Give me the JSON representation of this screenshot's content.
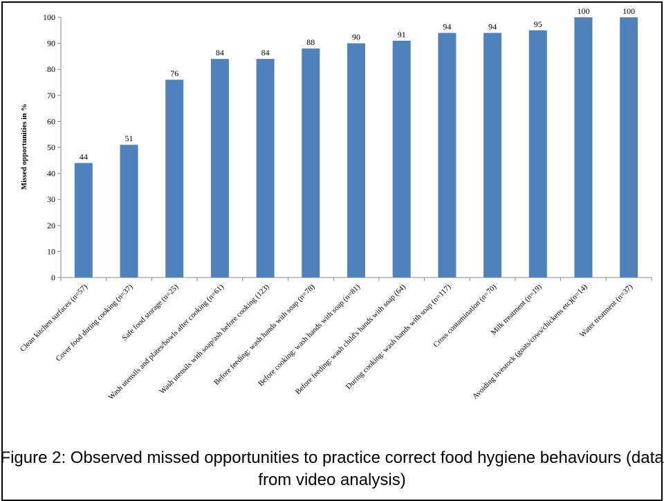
{
  "caption": "Figure 2: Observed missed opportunities to practice correct food hygiene behaviours (data from video analysis)",
  "chart_data": {
    "type": "bar",
    "title": "",
    "xlabel": "",
    "ylabel": "Missed opportunities in %",
    "ylim": [
      0,
      100
    ],
    "yticks": [
      0,
      10,
      20,
      30,
      40,
      50,
      60,
      70,
      80,
      90,
      100
    ],
    "categories": [
      "Clean kitchen surfaces (n=57)",
      "Cover food during cooking (n=37)",
      "Safe food storage (n=25)",
      "Wash utensils and plates/bowls after cooking (n=61)",
      "Wash utensils with soap/ash before cooking (123)",
      "Before feeding: wash hands with soap (n=78)",
      "Before cooking: wash hands with soap (n=81)",
      "Before feeding: wash child's hands with soap (64)",
      "During cooking: wash hands with soap (n=117)",
      "Cross contamination (n=70)",
      "Milk treatment (n=19)",
      "Avoiding livestock (goats/cows/chickens etc)(n=14)",
      "Water treatment (n=37)"
    ],
    "values": [
      44,
      51,
      76,
      84,
      84,
      88,
      90,
      91,
      94,
      94,
      95,
      100,
      100
    ],
    "data_labels": [
      "44",
      "51",
      "76",
      "84",
      "84",
      "88",
      "90",
      "91",
      "94",
      "94",
      "95",
      "100",
      "100"
    ],
    "bar_color": "#4F81BD",
    "grid": false,
    "legend": "none"
  }
}
